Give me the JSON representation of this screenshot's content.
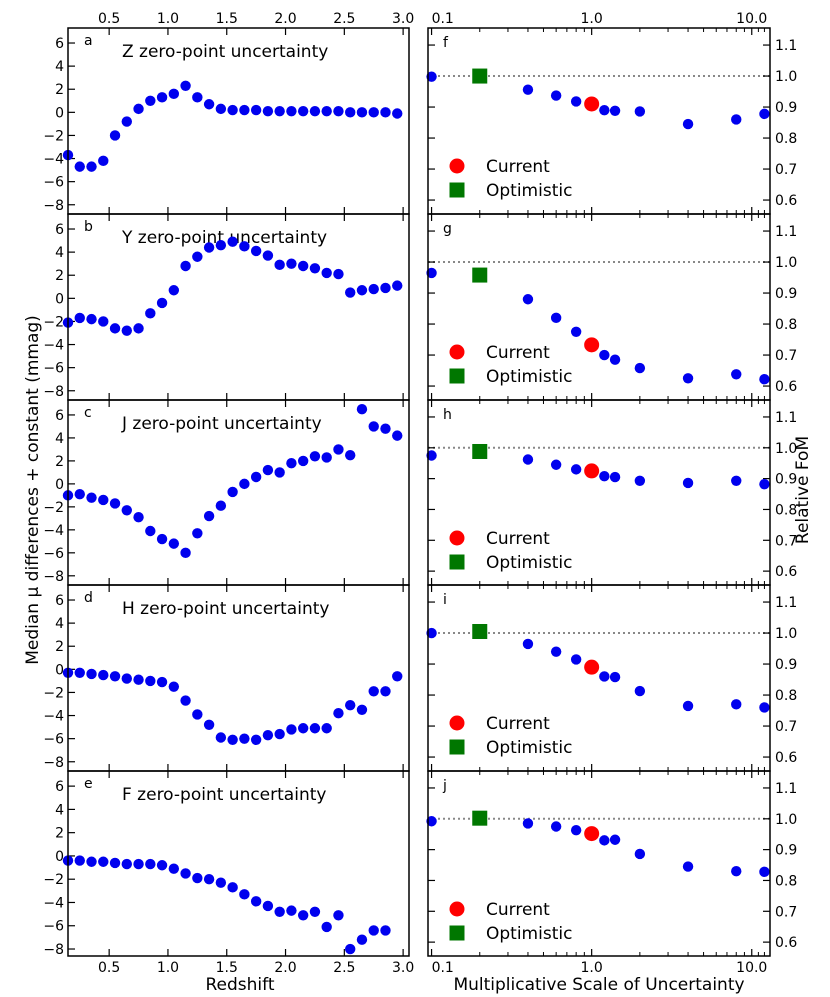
{
  "figure": {
    "left_ylabel": "Median μ differences + constant (mmag)",
    "left_xlabel": "Redshift",
    "right_ylabel": "Relative FoM",
    "right_xlabel": "Multiplicative Scale of Uncertainty",
    "colors": {
      "points": "#0000ee",
      "current": "#ff0000",
      "optimistic": "#007700",
      "refline": "#888888"
    },
    "legend": {
      "current": "Current",
      "optimistic": "Optimistic"
    }
  },
  "chart_data": [
    {
      "panel": "a",
      "title": "Z zero-point uncertainty",
      "type": "scatter",
      "xlim": [
        0.15,
        3.05
      ],
      "ylim": [
        -8.8,
        7.3
      ],
      "x_ticks": [
        0.5,
        1.0,
        1.5,
        2.0,
        2.5,
        3.0
      ],
      "x_tick_labels": [
        "0.5",
        "1.0",
        "1.5",
        "2.0",
        "2.5",
        "3.0"
      ],
      "y_ticks": [
        6,
        4,
        2,
        0,
        -2,
        -4,
        -6,
        -8
      ],
      "y_tick_labels": [
        "6",
        "4",
        "2",
        "0",
        "−2",
        "−4",
        "−6",
        "−8"
      ],
      "x": [
        0.15,
        0.25,
        0.35,
        0.45,
        0.55,
        0.65,
        0.75,
        0.85,
        0.95,
        1.05,
        1.15,
        1.25,
        1.35,
        1.45,
        1.55,
        1.65,
        1.75,
        1.85,
        1.95,
        2.05,
        2.15,
        2.25,
        2.35,
        2.45,
        2.55,
        2.65,
        2.75,
        2.85,
        2.95
      ],
      "y": [
        -3.7,
        -4.7,
        -4.7,
        -4.2,
        -2.0,
        -0.8,
        0.3,
        1.0,
        1.3,
        1.6,
        2.3,
        1.3,
        0.7,
        0.3,
        0.2,
        0.2,
        0.2,
        0.1,
        0.1,
        0.1,
        0.1,
        0.1,
        0.1,
        0.1,
        0.0,
        0.0,
        0.0,
        0.0,
        -0.1
      ]
    },
    {
      "panel": "b",
      "title": "Y zero-point uncertainty",
      "type": "scatter",
      "xlim": [
        0.15,
        3.05
      ],
      "ylim": [
        -8.8,
        7.3
      ],
      "y_ticks": [
        6,
        4,
        2,
        0,
        -2,
        -4,
        -6,
        -8
      ],
      "y_tick_labels": [
        "6",
        "4",
        "2",
        "0",
        "−2",
        "−4",
        "−6",
        "−8"
      ],
      "x": [
        0.15,
        0.25,
        0.35,
        0.45,
        0.55,
        0.65,
        0.75,
        0.85,
        0.95,
        1.05,
        1.15,
        1.25,
        1.35,
        1.45,
        1.55,
        1.65,
        1.75,
        1.85,
        1.95,
        2.05,
        2.15,
        2.25,
        2.35,
        2.45,
        2.55,
        2.65,
        2.75,
        2.85,
        2.95
      ],
      "y": [
        -2.1,
        -1.7,
        -1.8,
        -2.0,
        -2.6,
        -2.8,
        -2.6,
        -1.3,
        -0.4,
        0.7,
        2.8,
        3.6,
        4.4,
        4.6,
        4.9,
        4.5,
        4.1,
        3.7,
        2.9,
        3.0,
        2.8,
        2.6,
        2.2,
        2.1,
        0.5,
        0.7,
        0.8,
        0.9,
        1.1
      ]
    },
    {
      "panel": "c",
      "title": "J zero-point uncertainty",
      "type": "scatter",
      "xlim": [
        0.15,
        3.05
      ],
      "ylim": [
        -8.8,
        7.3
      ],
      "y_ticks": [
        6,
        4,
        2,
        0,
        -2,
        -4,
        -6,
        -8
      ],
      "y_tick_labels": [
        "6",
        "4",
        "2",
        "0",
        "−2",
        "−4",
        "−6",
        "−8"
      ],
      "x": [
        0.15,
        0.25,
        0.35,
        0.45,
        0.55,
        0.65,
        0.75,
        0.85,
        0.95,
        1.05,
        1.15,
        1.25,
        1.35,
        1.45,
        1.55,
        1.65,
        1.75,
        1.85,
        1.95,
        2.05,
        2.15,
        2.25,
        2.35,
        2.45,
        2.55,
        2.65,
        2.75,
        2.85,
        2.95
      ],
      "y": [
        -1.0,
        -0.9,
        -1.2,
        -1.4,
        -1.7,
        -2.3,
        -2.9,
        -4.1,
        -4.8,
        -5.2,
        -6.0,
        -4.3,
        -2.8,
        -1.9,
        -0.7,
        0.0,
        0.6,
        1.2,
        1.0,
        1.8,
        2.0,
        2.4,
        2.3,
        3.0,
        2.5,
        6.5,
        5.0,
        4.8,
        4.2
      ]
    },
    {
      "panel": "d",
      "title": "H zero-point uncertainty",
      "type": "scatter",
      "xlim": [
        0.15,
        3.05
      ],
      "ylim": [
        -8.8,
        7.3
      ],
      "y_ticks": [
        6,
        4,
        2,
        0,
        -2,
        -4,
        -6,
        -8
      ],
      "y_tick_labels": [
        "6",
        "4",
        "2",
        "0",
        "−2",
        "−4",
        "−6",
        "−8"
      ],
      "x": [
        0.15,
        0.25,
        0.35,
        0.45,
        0.55,
        0.65,
        0.75,
        0.85,
        0.95,
        1.05,
        1.15,
        1.25,
        1.35,
        1.45,
        1.55,
        1.65,
        1.75,
        1.85,
        1.95,
        2.05,
        2.15,
        2.25,
        2.35,
        2.45,
        2.55,
        2.65,
        2.75,
        2.85,
        2.95
      ],
      "y": [
        -0.3,
        -0.3,
        -0.4,
        -0.5,
        -0.6,
        -0.8,
        -0.9,
        -1.0,
        -1.1,
        -1.5,
        -2.7,
        -3.9,
        -4.8,
        -5.9,
        -6.1,
        -6.0,
        -6.1,
        -5.7,
        -5.6,
        -5.2,
        -5.1,
        -5.1,
        -5.1,
        -3.8,
        -3.1,
        -3.5,
        -1.9,
        -1.9,
        -0.6
      ]
    },
    {
      "panel": "e",
      "title": "F zero-point uncertainty",
      "type": "scatter",
      "xlim": [
        0.15,
        3.05
      ],
      "ylim": [
        -8.6,
        7.3
      ],
      "x_ticks": [
        0.5,
        1.0,
        1.5,
        2.0,
        2.5,
        3.0
      ],
      "x_tick_labels": [
        "0.5",
        "1.0",
        "1.5",
        "2.0",
        "2.5",
        "3.0"
      ],
      "y_ticks": [
        6,
        4,
        2,
        0,
        -2,
        -4,
        -6,
        -8
      ],
      "y_tick_labels": [
        "6",
        "4",
        "2",
        "0",
        "−2",
        "−4",
        "−6",
        "−8"
      ],
      "x": [
        0.15,
        0.25,
        0.35,
        0.45,
        0.55,
        0.65,
        0.75,
        0.85,
        0.95,
        1.05,
        1.15,
        1.25,
        1.35,
        1.45,
        1.55,
        1.65,
        1.75,
        1.85,
        1.95,
        2.05,
        2.15,
        2.25,
        2.35,
        2.45,
        2.55,
        2.65,
        2.75,
        2.85
      ],
      "y": [
        -0.4,
        -0.4,
        -0.5,
        -0.5,
        -0.6,
        -0.7,
        -0.7,
        -0.7,
        -0.8,
        -1.1,
        -1.5,
        -1.9,
        -2.0,
        -2.3,
        -2.7,
        -3.3,
        -3.9,
        -4.3,
        -4.8,
        -4.7,
        -5.1,
        -4.8,
        -6.1,
        -5.1,
        -8.0,
        -7.2,
        -6.4,
        -6.4
      ]
    },
    {
      "panel": "f",
      "type": "scatter",
      "xscale": "log",
      "xlim": [
        0.095,
        13
      ],
      "ylim": [
        0.555,
        1.155
      ],
      "refline": 1.0,
      "x_ticks": [
        0.1,
        1.0,
        10.0
      ],
      "x_tick_labels": [
        "0.1",
        "1.0",
        "10.0"
      ],
      "y_ticks": [
        1.1,
        1.0,
        0.9,
        0.8,
        0.7,
        0.6
      ],
      "y_tick_labels": [
        "1.1",
        "1.0",
        "0.9",
        "0.8",
        "0.7",
        "0.6"
      ],
      "x": [
        0.1,
        0.4,
        0.6,
        0.8,
        1.0,
        1.2,
        1.4,
        2.0,
        4.0,
        8.0,
        12.0
      ],
      "y": [
        0.998,
        0.956,
        0.937,
        0.918,
        0.905,
        0.89,
        0.888,
        0.886,
        0.845,
        0.86,
        0.878
      ],
      "current": {
        "x": 1.0,
        "y": 0.91
      },
      "optimistic": {
        "x": 0.2,
        "y": 1.0
      }
    },
    {
      "panel": "g",
      "type": "scatter",
      "xscale": "log",
      "xlim": [
        0.095,
        13
      ],
      "ylim": [
        0.555,
        1.155
      ],
      "refline": 1.0,
      "y_ticks": [
        1.1,
        1.0,
        0.9,
        0.8,
        0.7,
        0.6
      ],
      "y_tick_labels": [
        "1.1",
        "1.0",
        "0.9",
        "0.8",
        "0.7",
        "0.6"
      ],
      "x": [
        0.1,
        0.4,
        0.6,
        0.8,
        1.0,
        1.2,
        1.4,
        2.0,
        4.0,
        8.0,
        12.0
      ],
      "y": [
        0.965,
        0.88,
        0.82,
        0.775,
        0.74,
        0.7,
        0.685,
        0.658,
        0.625,
        0.638,
        0.622
      ],
      "current": {
        "x": 1.0,
        "y": 0.733
      },
      "optimistic": {
        "x": 0.2,
        "y": 0.958
      }
    },
    {
      "panel": "h",
      "type": "scatter",
      "xscale": "log",
      "xlim": [
        0.095,
        13
      ],
      "ylim": [
        0.555,
        1.155
      ],
      "refline": 1.0,
      "y_ticks": [
        1.1,
        1.0,
        0.9,
        0.8,
        0.7,
        0.6
      ],
      "y_tick_labels": [
        "1.1",
        "1.0",
        "0.9",
        "0.8",
        "0.7",
        "0.6"
      ],
      "x": [
        0.1,
        0.4,
        0.6,
        0.8,
        1.0,
        1.2,
        1.4,
        2.0,
        4.0,
        8.0,
        12.0
      ],
      "y": [
        0.975,
        0.962,
        0.945,
        0.93,
        0.922,
        0.908,
        0.905,
        0.893,
        0.886,
        0.893,
        0.882
      ],
      "current": {
        "x": 1.0,
        "y": 0.925
      },
      "optimistic": {
        "x": 0.2,
        "y": 0.988
      }
    },
    {
      "panel": "i",
      "type": "scatter",
      "xscale": "log",
      "xlim": [
        0.095,
        13
      ],
      "ylim": [
        0.555,
        1.155
      ],
      "refline": 1.0,
      "y_ticks": [
        1.1,
        1.0,
        0.9,
        0.8,
        0.7,
        0.6
      ],
      "y_tick_labels": [
        "1.1",
        "1.0",
        "0.9",
        "0.8",
        "0.7",
        "0.6"
      ],
      "x": [
        0.1,
        0.4,
        0.6,
        0.8,
        1.0,
        1.2,
        1.4,
        2.0,
        4.0,
        8.0,
        12.0
      ],
      "y": [
        1.0,
        0.965,
        0.94,
        0.915,
        0.895,
        0.86,
        0.858,
        0.813,
        0.765,
        0.77,
        0.76
      ],
      "current": {
        "x": 1.0,
        "y": 0.89
      },
      "optimistic": {
        "x": 0.2,
        "y": 1.005
      }
    },
    {
      "panel": "j",
      "type": "scatter",
      "xscale": "log",
      "xlim": [
        0.095,
        13
      ],
      "ylim": [
        0.555,
        1.155
      ],
      "refline": 1.0,
      "x_ticks": [
        0.1,
        1.0,
        10.0
      ],
      "x_tick_labels": [
        "0.1",
        "1.0",
        "10.0"
      ],
      "y_ticks": [
        1.1,
        1.0,
        0.9,
        0.8,
        0.7,
        0.6
      ],
      "y_tick_labels": [
        "1.1",
        "1.0",
        "0.9",
        "0.8",
        "0.7",
        "0.6"
      ],
      "x": [
        0.1,
        0.4,
        0.6,
        0.8,
        1.0,
        1.2,
        1.4,
        2.0,
        4.0,
        8.0,
        12.0
      ],
      "y": [
        0.992,
        0.985,
        0.975,
        0.963,
        0.95,
        0.93,
        0.932,
        0.886,
        0.845,
        0.83,
        0.828
      ],
      "current": {
        "x": 1.0,
        "y": 0.952
      },
      "optimistic": {
        "x": 0.2,
        "y": 1.002
      }
    }
  ]
}
